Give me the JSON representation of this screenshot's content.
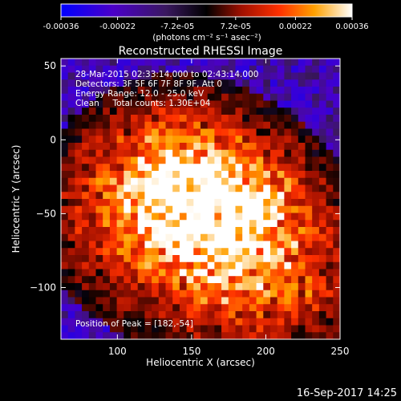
{
  "colorbar": {
    "ticks": [
      "-0.00036",
      "-0.00022",
      "-7.2e-05",
      "7.2e-05",
      "0.00022",
      "0.00036"
    ],
    "tick_values": [
      -0.00036,
      -0.00022,
      -7.2e-05,
      7.2e-05,
      0.00022,
      0.00036
    ],
    "range": [
      -0.00036,
      0.00036
    ],
    "units_label": "(photons cm⁻² s⁻¹ asec⁻²)"
  },
  "chart_data": {
    "type": "heatmap",
    "title": "Reconstructed RHESSI Image",
    "xlabel": "Heliocentric X (arcsec)",
    "ylabel": "Heliocentric Y (arcsec)",
    "xlim": [
      62,
      250
    ],
    "ylim": [
      -135,
      55
    ],
    "x_ticks": [
      100,
      150,
      200,
      250
    ],
    "y_ticks": [
      50,
      0,
      -50,
      -100
    ],
    "annotations": [
      "28-Mar-2015 02:33:14.000 to 02:43:14.000",
      "Detectors: 3F 5F 6F 7F 8F 9F, Att 0",
      "Energy Range: 12.0 - 25.0 keV",
      "Clean     Total counts: 1.30E+04"
    ],
    "peak_label": "Position of Peak = [182,-54]",
    "peak": [
      182,
      -54
    ],
    "sources": [
      {
        "x": 140,
        "y": -22,
        "amp": 1.0
      },
      {
        "x": 182,
        "y": -54,
        "amp": 1.05
      },
      {
        "x": 112,
        "y": -58,
        "amp": 0.55
      },
      {
        "x": 220,
        "y": -108,
        "amp": 0.45
      },
      {
        "x": 160,
        "y": -100,
        "amp": 0.35
      }
    ]
  },
  "footer": {
    "timestamp": "16-Sep-2017 14:25"
  }
}
